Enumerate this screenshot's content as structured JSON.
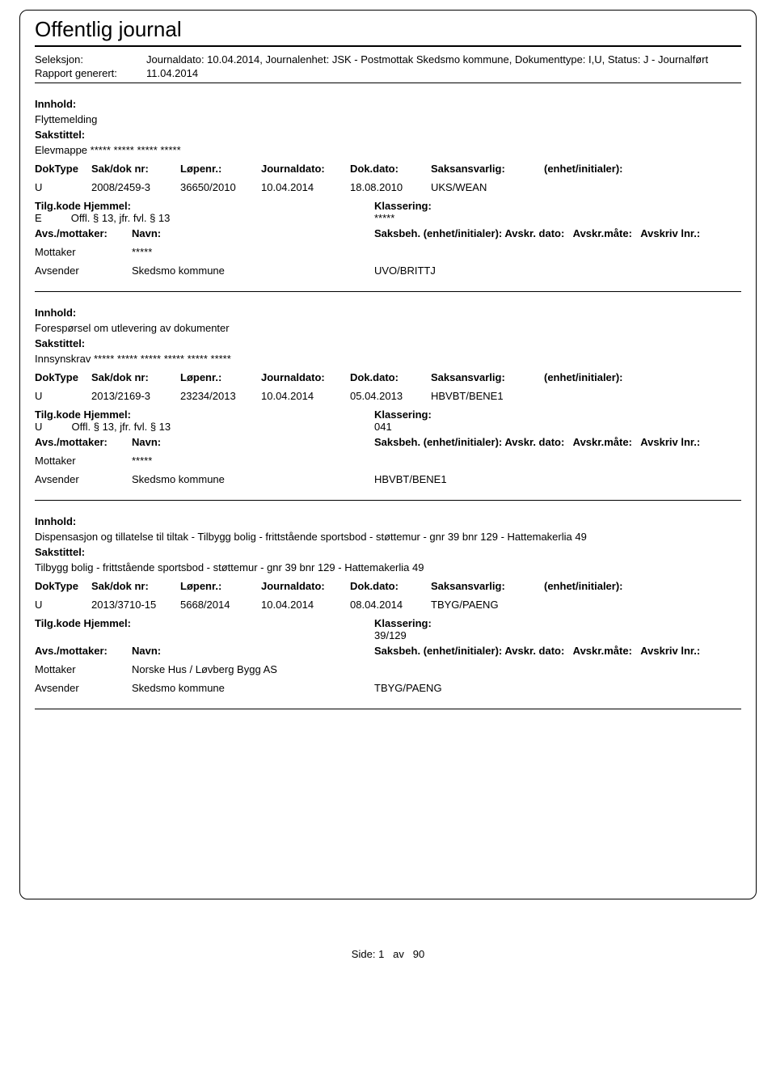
{
  "page_title": "Offentlig journal",
  "meta": {
    "seleksjon_label": "Seleksjon:",
    "seleksjon_value": "Journaldato: 10.04.2014, Journalenhet: JSK - Postmottak Skedsmo kommune, Dokumenttype: I,U, Status: J - Journalført",
    "rapport_label": "Rapport generert:",
    "rapport_value": "11.04.2014"
  },
  "labels": {
    "innhold": "Innhold:",
    "sakstittel": "Sakstittel:",
    "doktype": "DokType",
    "sakdok": "Sak/dok nr:",
    "lopenr": "Løpenr.:",
    "journaldato": "Journaldato:",
    "dokdato": "Dok.dato:",
    "saksansvarlig": "Saksansvarlig:",
    "enhet": "(enhet/initialer):",
    "tilgkode": "Tilg.kode",
    "hjemmel": "Hjemmel:",
    "klassering": "Klassering:",
    "avsmottaker": "Avs./mottaker:",
    "navn": "Navn:",
    "saksbeh": "Saksbeh.",
    "saksbeh_enhet": "(enhet/initialer):",
    "avskr_dato": "Avskr. dato:",
    "avskr_mate": "Avskr.måte:",
    "avskriv_lnr": "Avskriv lnr.:",
    "mottaker": "Mottaker",
    "avsender": "Avsender"
  },
  "entries": [
    {
      "innhold": "Flyttemelding",
      "sakstittel": "Elevmappe ***** ***** ***** *****",
      "doktype": "U",
      "sakdok": "2008/2459-3",
      "lopenr": "36650/2010",
      "journaldato": "10.04.2014",
      "dokdato": "18.08.2010",
      "saksansvarlig": "UKS/WEAN",
      "tilgkode": "E",
      "hjemmel": "Offl. § 13, jfr. fvl. § 13",
      "klassering": "*****",
      "mottaker_navn": "*****",
      "avsender_navn": "Skedsmo kommune",
      "saksbeh_value": "UVO/BRITTJ"
    },
    {
      "innhold": "Forespørsel om utlevering av dokumenter",
      "sakstittel": "Innsynskrav ***** ***** ***** ***** ***** *****",
      "doktype": "U",
      "sakdok": "2013/2169-3",
      "lopenr": "23234/2013",
      "journaldato": "10.04.2014",
      "dokdato": "05.04.2013",
      "saksansvarlig": "HBVBT/BENE1",
      "tilgkode": "U",
      "hjemmel": "Offl. § 13, jfr. fvl. § 13",
      "klassering": "041",
      "mottaker_navn": "*****",
      "avsender_navn": "Skedsmo kommune",
      "saksbeh_value": "HBVBT/BENE1"
    },
    {
      "innhold": "Dispensasjon og tillatelse til tiltak - Tilbygg bolig - frittstående sportsbod - støttemur - gnr 39 bnr 129 - Hattemakerlia 49",
      "sakstittel": "Tilbygg bolig - frittstående sportsbod - støttemur - gnr 39 bnr 129 - Hattemakerlia 49",
      "doktype": "U",
      "sakdok": "2013/3710-15",
      "lopenr": "5668/2014",
      "journaldato": "10.04.2014",
      "dokdato": "08.04.2014",
      "saksansvarlig": "TBYG/PAENG",
      "tilgkode": "",
      "hjemmel": "",
      "klassering": "39/129",
      "mottaker_navn": "Norske Hus / Løvberg Bygg AS",
      "avsender_navn": "Skedsmo kommune",
      "saksbeh_value": "TBYG/PAENG"
    }
  ],
  "footer": {
    "side_label": "Side:",
    "page": "1",
    "av_label": "av",
    "total": "90"
  }
}
